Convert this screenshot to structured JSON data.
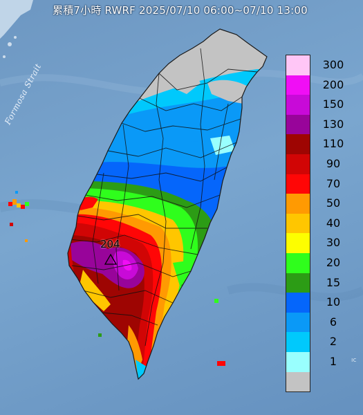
{
  "title": "累積7小時 RWRF 2025/07/10 06:00~07/10 13:00",
  "strait_label": "Formosa Strait",
  "max_value_label": "204",
  "corner_text": "ıc",
  "legend": [
    {
      "label": "300",
      "color": "#ffc6f6"
    },
    {
      "label": "200",
      "color": "#f00ef5"
    },
    {
      "label": "150",
      "color": "#c80ad8"
    },
    {
      "label": "130",
      "color": "#98049a"
    },
    {
      "label": "110",
      "color": "#9e0502"
    },
    {
      "label": "90",
      "color": "#d10505"
    },
    {
      "label": "70",
      "color": "#ff0606"
    },
    {
      "label": "50",
      "color": "#ff9a02"
    },
    {
      "label": "40",
      "color": "#ffc600"
    },
    {
      "label": "30",
      "color": "#fdfe00"
    },
    {
      "label": "20",
      "color": "#2ffe1c"
    },
    {
      "label": "15",
      "color": "#2c9c15"
    },
    {
      "label": "10",
      "color": "#0566fb"
    },
    {
      "label": "6",
      "color": "#0a99f7"
    },
    {
      "label": "2",
      "color": "#00c9fc"
    },
    {
      "label": "1",
      "color": "#99fffe"
    },
    {
      "label": "",
      "color": "#c3c3c3"
    }
  ]
}
